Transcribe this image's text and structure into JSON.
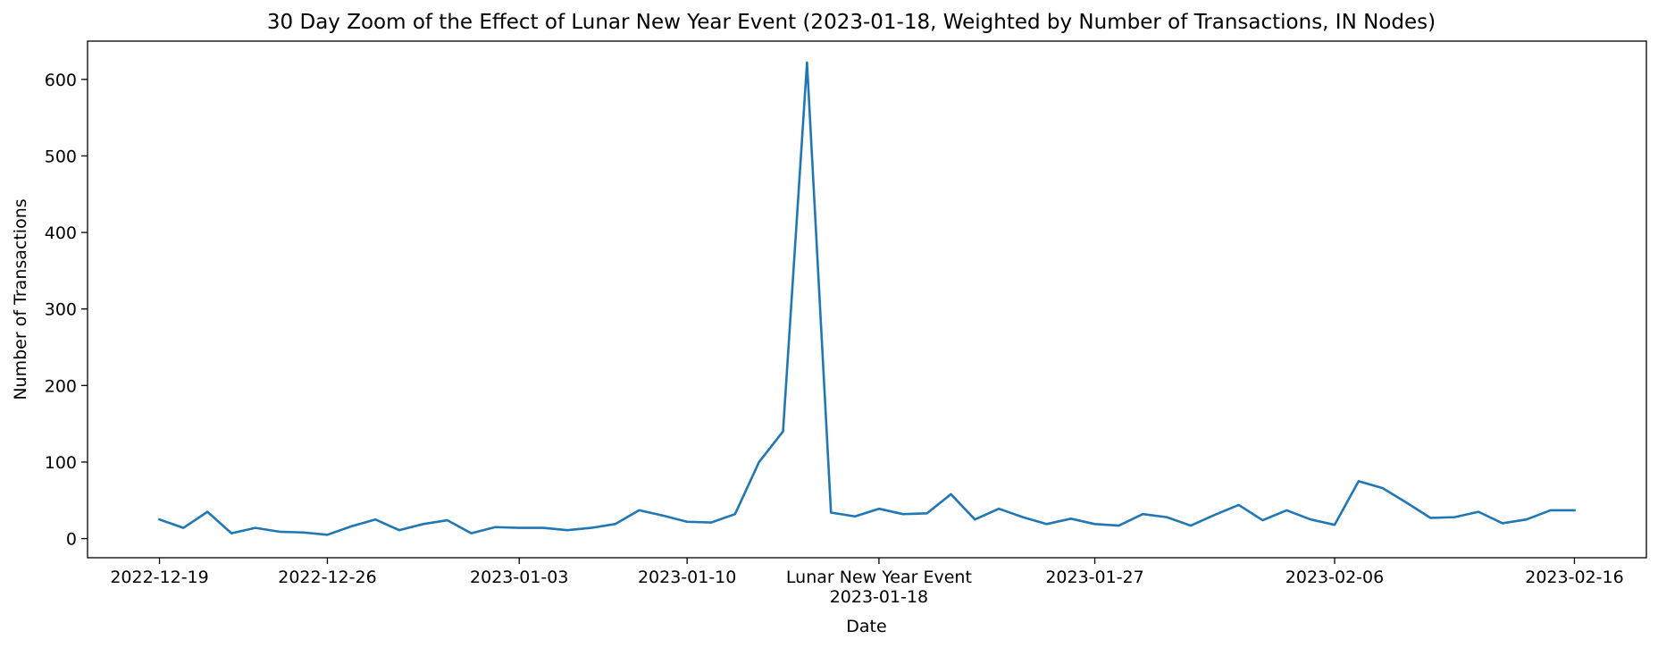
{
  "chart_data": {
    "type": "line",
    "title": "30 Day Zoom of the Effect of Lunar New Year Event (2023-01-18, Weighted by Number of Transactions, IN Nodes)",
    "xlabel": "Date",
    "ylabel": "Number of Transactions",
    "ylim": [
      -25,
      650
    ],
    "xlim": [
      "2022-12-16",
      "2023-02-19"
    ],
    "grid": false,
    "line_color": "#1f77b4",
    "yticks": [
      0,
      100,
      200,
      300,
      400,
      500,
      600
    ],
    "xticks": [
      {
        "date": "2022-12-19",
        "label": "2022-12-19"
      },
      {
        "date": "2022-12-26",
        "label": "2022-12-26"
      },
      {
        "date": "2023-01-03",
        "label": "2023-01-03"
      },
      {
        "date": "2023-01-10",
        "label": "2023-01-10"
      },
      {
        "date": "2023-01-18",
        "label": "Lunar New Year Event",
        "label2": "2023-01-18"
      },
      {
        "date": "2023-01-27",
        "label": "2023-01-27"
      },
      {
        "date": "2023-02-06",
        "label": "2023-02-06"
      },
      {
        "date": "2023-02-16",
        "label": "2023-02-16"
      }
    ],
    "series": [
      {
        "x": [
          "2022-12-19",
          "2022-12-20",
          "2022-12-21",
          "2022-12-22",
          "2022-12-23",
          "2022-12-24",
          "2022-12-25",
          "2022-12-26",
          "2022-12-27",
          "2022-12-28",
          "2022-12-29",
          "2022-12-30",
          "2022-12-31",
          "2023-01-01",
          "2023-01-02",
          "2023-01-03",
          "2023-01-04",
          "2023-01-05",
          "2023-01-06",
          "2023-01-07",
          "2023-01-08",
          "2023-01-09",
          "2023-01-10",
          "2023-01-11",
          "2023-01-12",
          "2023-01-13",
          "2023-01-14",
          "2023-01-15",
          "2023-01-16",
          "2023-01-17",
          "2023-01-18",
          "2023-01-19",
          "2023-01-20",
          "2023-01-21",
          "2023-01-22",
          "2023-01-23",
          "2023-01-24",
          "2023-01-25",
          "2023-01-26",
          "2023-01-27",
          "2023-01-28",
          "2023-01-29",
          "2023-01-30",
          "2023-01-31",
          "2023-02-01",
          "2023-02-02",
          "2023-02-03",
          "2023-02-04",
          "2023-02-05",
          "2023-02-06",
          "2023-02-07",
          "2023-02-08",
          "2023-02-09",
          "2023-02-10",
          "2023-02-11",
          "2023-02-12",
          "2023-02-13",
          "2023-02-14",
          "2023-02-15",
          "2023-02-16"
        ],
        "values": [
          25,
          14,
          35,
          7,
          14,
          9,
          8,
          5,
          16,
          25,
          11,
          19,
          24,
          7,
          15,
          14,
          14,
          11,
          14,
          19,
          37,
          30,
          22,
          21,
          32,
          100,
          140,
          622,
          34,
          29,
          39,
          32,
          33,
          58,
          25,
          39,
          28,
          19,
          26,
          19,
          17,
          32,
          28,
          17,
          31,
          44,
          24,
          37,
          25,
          18,
          75,
          66,
          47,
          27,
          28,
          35,
          20,
          25,
          37,
          37
        ]
      }
    ]
  }
}
